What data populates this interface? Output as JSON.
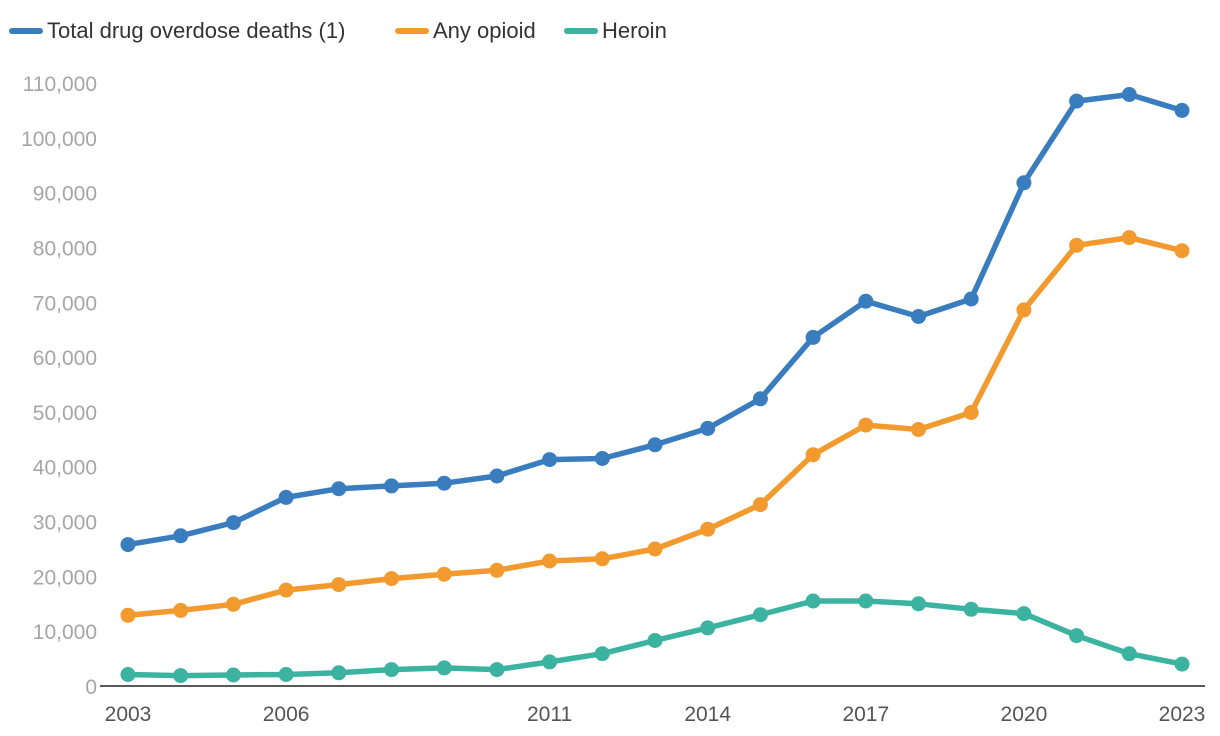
{
  "chart_data": {
    "type": "line",
    "title": "",
    "xlabel": "",
    "ylabel": "",
    "x": [
      2003,
      2004,
      2005,
      2006,
      2007,
      2008,
      2009,
      2010,
      2011,
      2012,
      2013,
      2014,
      2015,
      2016,
      2017,
      2018,
      2019,
      2020,
      2021,
      2022,
      2023
    ],
    "x_tick_labels": [
      "2003",
      "2006",
      "2011",
      "2014",
      "2017",
      "2020",
      "2023"
    ],
    "y_tick_labels": [
      "0",
      "10,000",
      "20,000",
      "30,000",
      "40,000",
      "50,000",
      "60,000",
      "70,000",
      "80,000",
      "90,000",
      "100,000",
      "110,000"
    ],
    "ylim": [
      0,
      110000
    ],
    "grid": false,
    "legend_position": "top-left",
    "series": [
      {
        "name": "Total drug overdose deaths (1)",
        "color": "#3A7DBF",
        "values": [
          25800,
          27400,
          29800,
          34400,
          36000,
          36500,
          37000,
          38300,
          41300,
          41500,
          44000,
          47000,
          52400,
          63600,
          70200,
          67400,
          70600,
          91800,
          106700,
          107900,
          105000
        ]
      },
      {
        "name": "Any opioid",
        "color": "#F29A2E",
        "values": [
          12900,
          13800,
          14900,
          17500,
          18500,
          19600,
          20400,
          21100,
          22800,
          23200,
          25000,
          28600,
          33100,
          42200,
          47600,
          46800,
          49900,
          68600,
          80400,
          81800,
          79400
        ]
      },
      {
        "name": "Heroin",
        "color": "#3BB3A0",
        "values": [
          2100,
          1900,
          2000,
          2100,
          2400,
          3000,
          3300,
          3000,
          4400,
          5900,
          8300,
          10600,
          13000,
          15500,
          15500,
          15000,
          14000,
          13200,
          9200,
          5900,
          4000
        ]
      }
    ]
  }
}
